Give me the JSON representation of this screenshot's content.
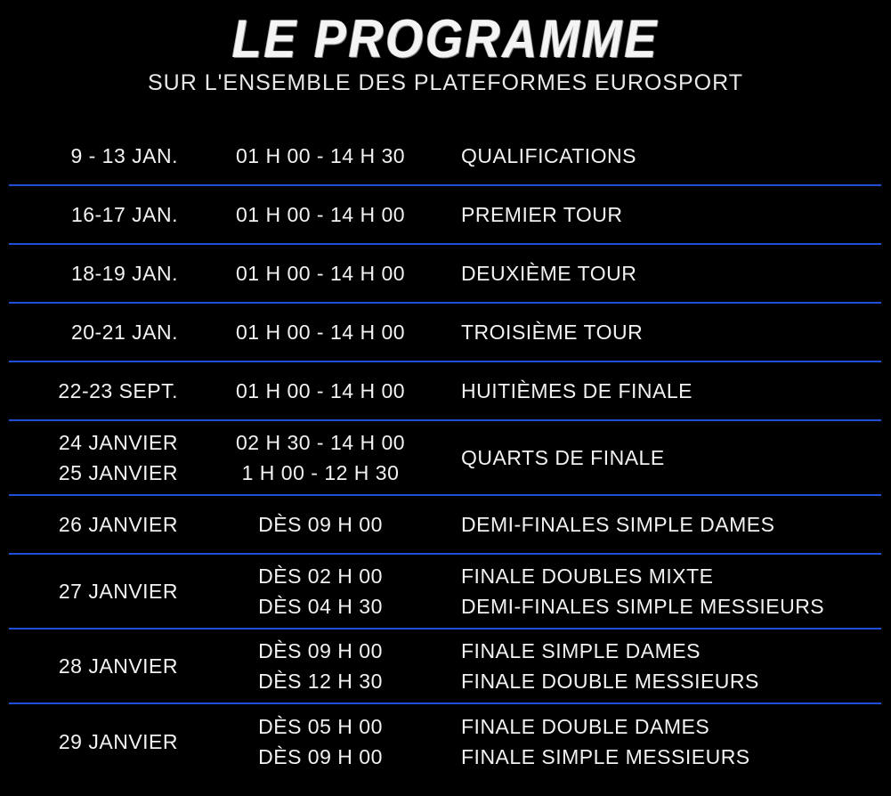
{
  "header": {
    "title": "LE PROGRAMME",
    "subtitle": "SUR L'ENSEMBLE DES PLATEFORMES EUROSPORT"
  },
  "colors": {
    "background": "#000000",
    "separator": "#1f4fd6",
    "text": "#f2f2f2"
  },
  "schedule": [
    {
      "dates": [
        "9 - 13 JAN."
      ],
      "times": [
        "01 H 00 - 14 H 30"
      ],
      "events": [
        "QUALIFICATIONS"
      ]
    },
    {
      "dates": [
        "16-17 JAN."
      ],
      "times": [
        "01 H 00 - 14 H 00"
      ],
      "events": [
        "PREMIER TOUR"
      ]
    },
    {
      "dates": [
        "18-19 JAN."
      ],
      "times": [
        "01 H 00 - 14 H 00"
      ],
      "events": [
        "DEUXIÈME TOUR"
      ]
    },
    {
      "dates": [
        "20-21 JAN."
      ],
      "times": [
        "01 H 00 - 14 H 00"
      ],
      "events": [
        "TROISIÈME TOUR"
      ]
    },
    {
      "dates": [
        "22-23 SEPT."
      ],
      "times": [
        "01 H 00 - 14 H 00"
      ],
      "events": [
        "HUITIÈMES DE FINALE"
      ]
    },
    {
      "dates": [
        "24 JANVIER",
        "25 JANVIER"
      ],
      "times": [
        "02 H 30 - 14 H 00",
        "1 H 00 - 12 H 30"
      ],
      "events": [
        "QUARTS DE FINALE"
      ]
    },
    {
      "dates": [
        "26 JANVIER"
      ],
      "times": [
        "DÈS 09 H 00"
      ],
      "events": [
        "DEMI-FINALES SIMPLE DAMES"
      ]
    },
    {
      "dates": [
        "27 JANVIER"
      ],
      "times": [
        "DÈS 02 H 00",
        "DÈS 04 H 30"
      ],
      "events": [
        "FINALE DOUBLES MIXTE",
        "DEMI-FINALES SIMPLE MESSIEURS"
      ]
    },
    {
      "dates": [
        "28 JANVIER"
      ],
      "times": [
        "DÈS 09 H 00",
        "DÈS 12 H 30"
      ],
      "events": [
        "FINALE SIMPLE DAMES",
        "FINALE DOUBLE MESSIEURS"
      ]
    },
    {
      "dates": [
        "29 JANVIER"
      ],
      "times": [
        "DÈS 05 H 00",
        "DÈS 09 H 00"
      ],
      "events": [
        "FINALE DOUBLE DAMES",
        "FINALE SIMPLE MESSIEURS"
      ]
    }
  ]
}
